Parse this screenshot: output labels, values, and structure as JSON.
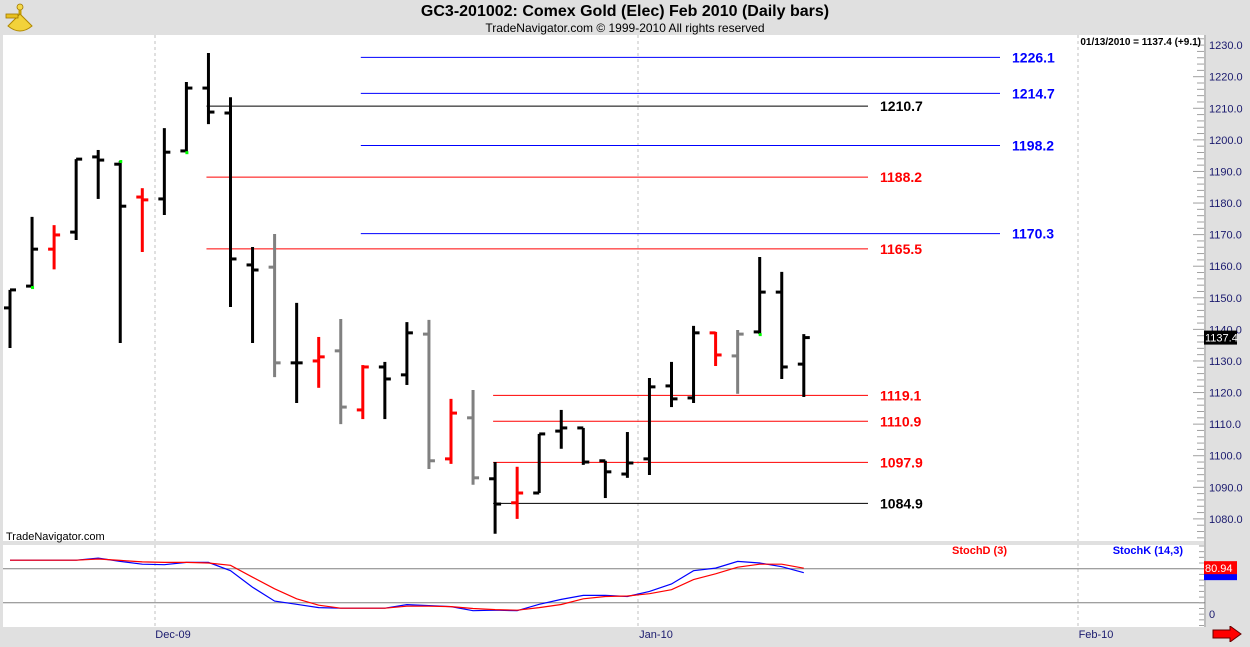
{
  "header": {
    "title": "GC3-201002:  Comex Gold (Elec) Feb 2010  (Daily bars)",
    "subtitle": "TradeNavigator.com © 1999-2010 All rights reserved",
    "last_readout": "01/13/2010 = 1137.4 (+9.1)",
    "watermark": "TradeNavigator.com",
    "logo_icon": "sextant-icon"
  },
  "colors": {
    "up": "#000000",
    "down": "#ff0000",
    "neutral": "#808080",
    "marker": "#00ff00",
    "blue_level": "#0000ff",
    "red_level": "#ff0000",
    "black_level": "#000000",
    "stochD": "#ff0000",
    "stochK": "#0000ff"
  },
  "chart_data": [
    {
      "type": "ohlc",
      "title": "GC3-201002:  Comex Gold (Elec) Feb 2010  (Daily bars)",
      "ylim": [
        1073,
        1233.2
      ],
      "y_ticks": [
        1080,
        1090,
        1100,
        1110,
        1120,
        1130,
        1140,
        1150,
        1160,
        1170,
        1180,
        1190,
        1200,
        1210,
        1220,
        1230
      ],
      "y_tick_labels": [
        "1080.0",
        "1090.0",
        "1100.0",
        "1110.0",
        "1120.0",
        "1130.0",
        "1140.0",
        "1150.0",
        "1160.0",
        "1170.0",
        "1180.0",
        "1190.0",
        "1200.0",
        "1210.0",
        "1220.0",
        "1230.0"
      ],
      "x_labels": [
        "Dec-09",
        "Jan-10",
        "Feb-10"
      ],
      "last_price_label": "1137.4",
      "bars": [
        {
          "o": 1146.8,
          "h": 1152.5,
          "l": 1134.1,
          "c": 1152.5,
          "color": "up"
        },
        {
          "o": 1153.7,
          "h": 1175.6,
          "l": 1153.4,
          "c": 1165.4,
          "color": "up",
          "marker": "low"
        },
        {
          "o": 1165.4,
          "h": 1173.0,
          "l": 1159.0,
          "c": 1169.9,
          "color": "down"
        },
        {
          "o": 1170.8,
          "h": 1193.9,
          "l": 1168.3,
          "c": 1193.9,
          "color": "up"
        },
        {
          "o": 1194.6,
          "h": 1196.8,
          "l": 1181.3,
          "c": 1193.6,
          "color": "up"
        },
        {
          "o": 1192.3,
          "h": 1193.3,
          "l": 1135.7,
          "c": 1179.0,
          "color": "up",
          "marker": "high"
        },
        {
          "o": 1181.9,
          "h": 1184.7,
          "l": 1164.5,
          "c": 1181.0,
          "color": "down"
        },
        {
          "o": 1181.3,
          "h": 1203.7,
          "l": 1176.2,
          "c": 1196.1,
          "color": "up"
        },
        {
          "o": 1196.5,
          "h": 1218.3,
          "l": 1196.1,
          "c": 1216.4,
          "color": "up",
          "marker": "low"
        },
        {
          "o": 1216.4,
          "h": 1227.5,
          "l": 1205.0,
          "c": 1208.8,
          "color": "up"
        },
        {
          "o": 1208.5,
          "h": 1213.5,
          "l": 1147.1,
          "c": 1162.3,
          "color": "up"
        },
        {
          "o": 1160.4,
          "h": 1166.1,
          "l": 1135.7,
          "c": 1158.8,
          "color": "up"
        },
        {
          "o": 1159.7,
          "h": 1170.2,
          "l": 1124.9,
          "c": 1129.4,
          "color": "neutral"
        },
        {
          "o": 1129.4,
          "h": 1148.4,
          "l": 1116.7,
          "c": 1129.4,
          "color": "up"
        },
        {
          "o": 1130.0,
          "h": 1137.6,
          "l": 1121.5,
          "c": 1131.3,
          "color": "down"
        },
        {
          "o": 1133.2,
          "h": 1143.3,
          "l": 1110.0,
          "c": 1115.4,
          "color": "neutral"
        },
        {
          "o": 1114.5,
          "h": 1128.7,
          "l": 1111.6,
          "c": 1128.1,
          "color": "down"
        },
        {
          "o": 1128.1,
          "h": 1129.7,
          "l": 1111.6,
          "c": 1124.3,
          "color": "up"
        },
        {
          "o": 1125.6,
          "h": 1142.3,
          "l": 1122.4,
          "c": 1138.9,
          "color": "up"
        },
        {
          "o": 1138.5,
          "h": 1143.0,
          "l": 1095.8,
          "c": 1098.4,
          "color": "neutral"
        },
        {
          "o": 1099.0,
          "h": 1118.0,
          "l": 1097.4,
          "c": 1113.5,
          "color": "down"
        },
        {
          "o": 1112.0,
          "h": 1120.8,
          "l": 1090.8,
          "c": 1093.0,
          "color": "neutral"
        },
        {
          "o": 1092.7,
          "h": 1098.0,
          "l": 1075.3,
          "c": 1084.7,
          "color": "up"
        },
        {
          "o": 1085.1,
          "h": 1096.5,
          "l": 1080.0,
          "c": 1088.2,
          "color": "down"
        },
        {
          "o": 1088.2,
          "h": 1106.9,
          "l": 1088.2,
          "c": 1106.9,
          "color": "up"
        },
        {
          "o": 1107.8,
          "h": 1114.5,
          "l": 1102.2,
          "c": 1108.8,
          "color": "up"
        },
        {
          "o": 1108.8,
          "h": 1108.8,
          "l": 1097.1,
          "c": 1098.0,
          "color": "up"
        },
        {
          "o": 1098.4,
          "h": 1098.4,
          "l": 1086.6,
          "c": 1094.9,
          "color": "up"
        },
        {
          "o": 1094.2,
          "h": 1107.5,
          "l": 1093.0,
          "c": 1097.7,
          "color": "up"
        },
        {
          "o": 1099.0,
          "h": 1124.6,
          "l": 1093.9,
          "c": 1121.8,
          "color": "up"
        },
        {
          "o": 1122.1,
          "h": 1129.7,
          "l": 1115.4,
          "c": 1118.0,
          "color": "up"
        },
        {
          "o": 1118.3,
          "h": 1141.1,
          "l": 1116.7,
          "c": 1138.9,
          "color": "up"
        },
        {
          "o": 1138.9,
          "h": 1139.2,
          "l": 1128.4,
          "c": 1131.9,
          "color": "down"
        },
        {
          "o": 1131.6,
          "h": 1139.8,
          "l": 1119.6,
          "c": 1138.5,
          "color": "neutral"
        },
        {
          "o": 1139.2,
          "h": 1162.9,
          "l": 1138.5,
          "c": 1151.8,
          "color": "up",
          "marker": "low"
        },
        {
          "o": 1151.8,
          "h": 1158.2,
          "l": 1124.3,
          "c": 1128.1,
          "color": "up"
        },
        {
          "o": 1129.0,
          "h": 1138.5,
          "l": 1118.6,
          "c": 1137.4,
          "color": "up"
        }
      ],
      "levels": [
        {
          "value": 1226.1,
          "label": "1226.1",
          "color": "blue_level",
          "start_bar": 16
        },
        {
          "value": 1214.7,
          "label": "1214.7",
          "color": "blue_level",
          "start_bar": 16
        },
        {
          "value": 1210.7,
          "label": "1210.7",
          "color": "black_level",
          "start_bar": 9
        },
        {
          "value": 1198.2,
          "label": "1198.2",
          "color": "blue_level",
          "start_bar": 16
        },
        {
          "value": 1188.2,
          "label": "1188.2",
          "color": "red_level",
          "start_bar": 9
        },
        {
          "value": 1170.3,
          "label": "1170.3",
          "color": "blue_level",
          "start_bar": 16
        },
        {
          "value": 1165.5,
          "label": "1165.5",
          "color": "red_level",
          "start_bar": 9
        },
        {
          "value": 1119.1,
          "label": "1119.1",
          "color": "red_level",
          "start_bar": 22
        },
        {
          "value": 1110.9,
          "label": "1110.9",
          "color": "red_level",
          "start_bar": 22
        },
        {
          "value": 1097.9,
          "label": "1097.9",
          "color": "red_level",
          "start_bar": 22
        },
        {
          "value": 1084.9,
          "label": "1084.9",
          "color": "black_level",
          "start_bar": 22
        }
      ]
    },
    {
      "type": "line",
      "ylim": [
        -22.6,
        121.7
      ],
      "y_tick_labels": [
        "0"
      ],
      "reference_lines": [
        20,
        80
      ],
      "series": [
        {
          "name": "StochD (3)",
          "color": "stochD",
          "last_label": "80.94",
          "values": [
            95,
            95,
            95,
            95,
            97,
            94.6,
            92,
            91,
            91,
            90,
            86,
            65,
            44.6,
            27,
            15.7,
            10.4,
            10.4,
            10.4,
            14,
            14,
            13.3,
            10,
            8,
            7,
            11.6,
            17,
            27,
            31,
            32,
            36,
            43,
            60.9,
            71,
            82.6,
            88,
            88,
            80.94
          ]
        },
        {
          "name": "StochK (14,3)",
          "color": "stochK",
          "values": [
            95,
            95,
            95,
            95,
            98.6,
            92.8,
            88,
            87,
            91,
            91,
            76.5,
            47.5,
            23,
            17.4,
            11.6,
            10.4,
            10.4,
            10.4,
            16.8,
            15,
            13.3,
            6,
            7,
            6,
            17.4,
            26,
            33,
            33,
            31,
            40,
            53,
            76.5,
            81,
            92.8,
            90,
            83.5,
            73
          ]
        }
      ]
    }
  ],
  "navigation": {
    "scroll_right_icon": "red-arrow-right-icon"
  }
}
